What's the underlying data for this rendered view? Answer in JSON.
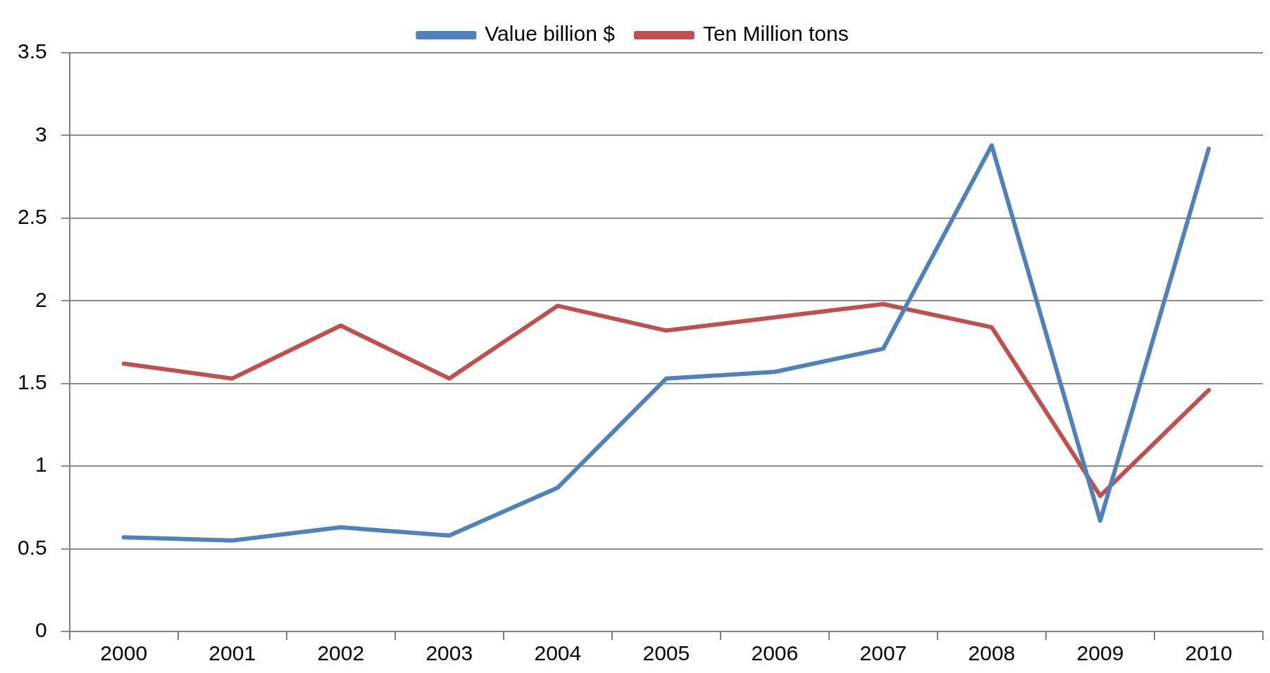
{
  "chart_data": {
    "type": "line",
    "categories": [
      "2000",
      "2001",
      "2002",
      "2003",
      "2004",
      "2005",
      "2006",
      "2007",
      "2008",
      "2009",
      "2010"
    ],
    "series": [
      {
        "name": "Value billion $",
        "color": "#4f81bd",
        "values": [
          0.57,
          0.55,
          0.63,
          0.58,
          0.87,
          1.53,
          1.57,
          1.71,
          2.94,
          0.67,
          2.92
        ]
      },
      {
        "name": "Ten Million tons",
        "color": "#c0504d",
        "values": [
          1.62,
          1.53,
          1.85,
          1.53,
          1.97,
          1.82,
          1.9,
          1.98,
          1.84,
          0.82,
          1.46
        ]
      }
    ],
    "ylim": [
      0,
      3.5
    ],
    "yticks": [
      0,
      0.5,
      1,
      1.5,
      2,
      2.5,
      3,
      3.5
    ],
    "grid": "y",
    "legend": "top",
    "marker": "none",
    "line_style": "solid"
  }
}
